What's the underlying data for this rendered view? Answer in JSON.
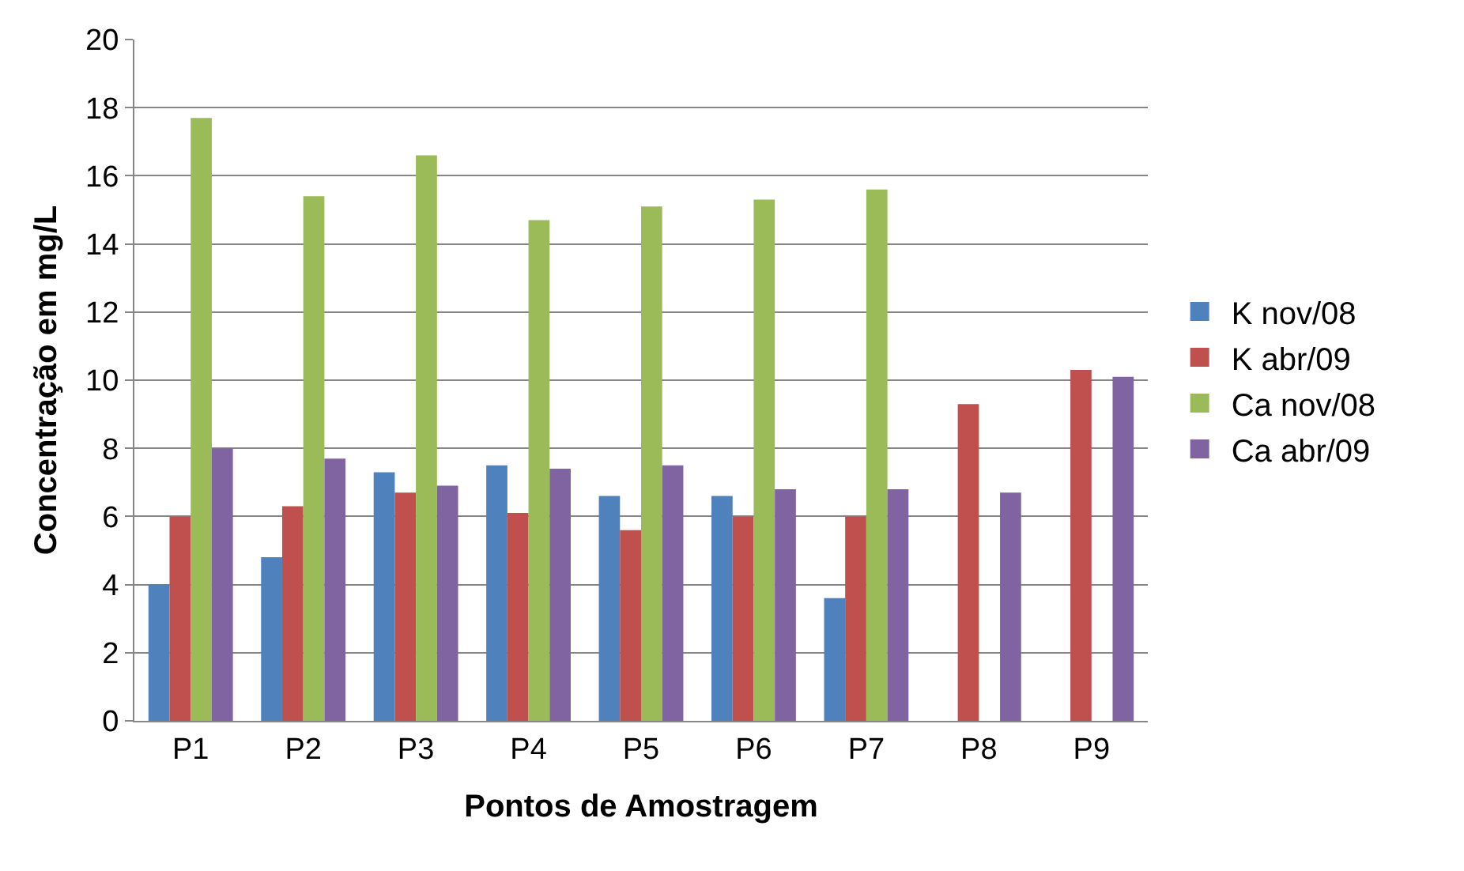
{
  "chart_data": {
    "type": "bar",
    "xlabel": "Pontos de Amostragem",
    "ylabel": "Concentração em mg/L",
    "categories": [
      "P1",
      "P2",
      "P3",
      "P4",
      "P5",
      "P6",
      "P7",
      "P8",
      "P9"
    ],
    "series": [
      {
        "name": "K nov/08",
        "color": "#4f81bd",
        "values": [
          4.0,
          4.8,
          7.3,
          7.5,
          6.6,
          6.6,
          3.6,
          null,
          null
        ]
      },
      {
        "name": "K abr/09",
        "color": "#c0504d",
        "values": [
          6.0,
          6.3,
          6.7,
          6.1,
          5.6,
          6.0,
          6.0,
          9.3,
          10.3
        ]
      },
      {
        "name": "Ca nov/08",
        "color": "#9bbb59",
        "values": [
          17.7,
          15.4,
          16.6,
          14.7,
          15.1,
          15.3,
          15.6,
          null,
          null
        ]
      },
      {
        "name": "Ca abr/09",
        "color": "#8064a2",
        "values": [
          8.0,
          7.7,
          6.9,
          7.4,
          7.5,
          6.8,
          6.8,
          6.7,
          10.1
        ]
      }
    ],
    "ylim": [
      0,
      20
    ],
    "yticks": [
      0,
      2,
      4,
      6,
      8,
      10,
      12,
      14,
      16,
      18,
      20
    ],
    "grid": "y",
    "legend": "right"
  }
}
